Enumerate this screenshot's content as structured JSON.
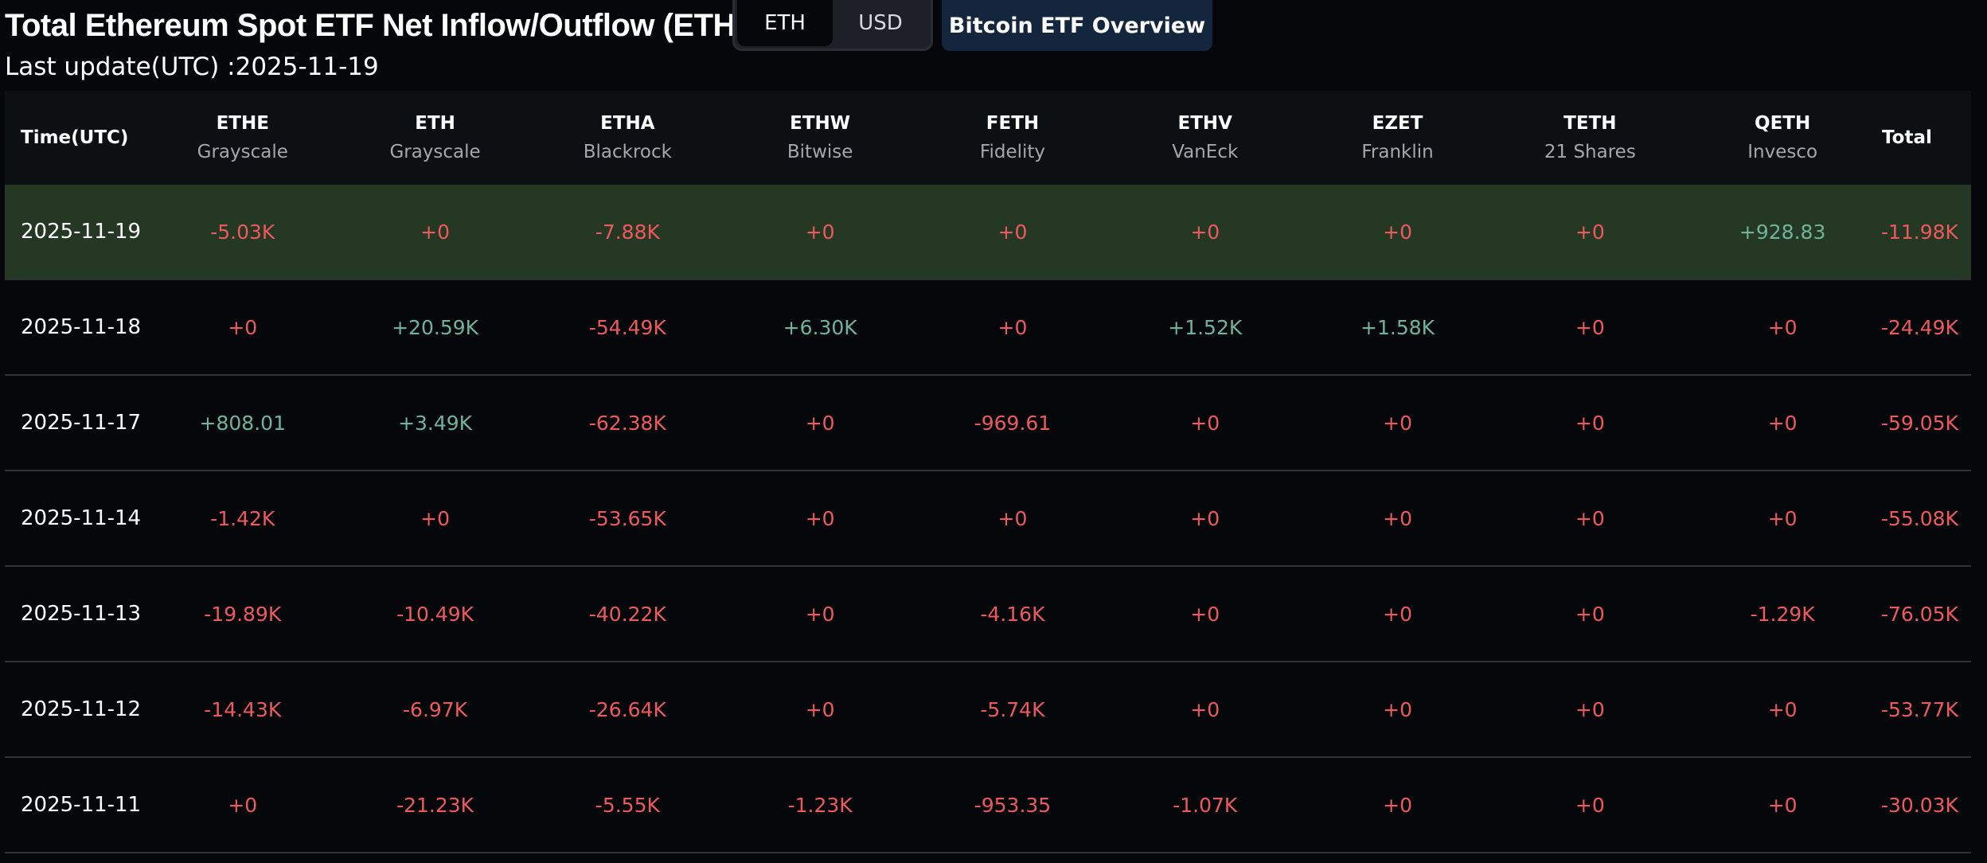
{
  "page": {
    "title": "Total Ethereum Spot ETF Net Inflow/Outflow (ETH)",
    "last_update": "Last update(UTC) :2025-11-19"
  },
  "toolbar": {
    "units": [
      "ETH",
      "USD"
    ],
    "selected_unit": "ETH",
    "overview_label": "Bitcoin ETF Overview"
  },
  "colors": {
    "negative": "#ec5a5e",
    "positive": "#6fb39a",
    "highlight_row": "#253823",
    "overview_button": "#14263d"
  },
  "table": {
    "time_header": "Time(UTC)",
    "total_header": "Total",
    "funds": [
      {
        "ticker": "ETHE",
        "issuer": "Grayscale"
      },
      {
        "ticker": "ETH",
        "issuer": "Grayscale"
      },
      {
        "ticker": "ETHA",
        "issuer": "Blackrock"
      },
      {
        "ticker": "ETHW",
        "issuer": "Bitwise"
      },
      {
        "ticker": "FETH",
        "issuer": "Fidelity"
      },
      {
        "ticker": "ETHV",
        "issuer": "VanEck"
      },
      {
        "ticker": "EZET",
        "issuer": "Franklin"
      },
      {
        "ticker": "TETH",
        "issuer": "21 Shares"
      },
      {
        "ticker": "QETH",
        "issuer": "Invesco"
      }
    ],
    "rows": [
      {
        "date": "2025-11-19",
        "values": [
          "-5.03K",
          "+0",
          "-7.88K",
          "+0",
          "+0",
          "+0",
          "+0",
          "+0",
          "+928.83"
        ],
        "total": "-11.98K"
      },
      {
        "date": "2025-11-18",
        "values": [
          "+0",
          "+20.59K",
          "-54.49K",
          "+6.30K",
          "+0",
          "+1.52K",
          "+1.58K",
          "+0",
          "+0"
        ],
        "total": "-24.49K"
      },
      {
        "date": "2025-11-17",
        "values": [
          "+808.01",
          "+3.49K",
          "-62.38K",
          "+0",
          "-969.61",
          "+0",
          "+0",
          "+0",
          "+0"
        ],
        "total": "-59.05K"
      },
      {
        "date": "2025-11-14",
        "values": [
          "-1.42K",
          "+0",
          "-53.65K",
          "+0",
          "+0",
          "+0",
          "+0",
          "+0",
          "+0"
        ],
        "total": "-55.08K"
      },
      {
        "date": "2025-11-13",
        "values": [
          "-19.89K",
          "-10.49K",
          "-40.22K",
          "+0",
          "-4.16K",
          "+0",
          "+0",
          "+0",
          "-1.29K"
        ],
        "total": "-76.05K"
      },
      {
        "date": "2025-11-12",
        "values": [
          "-14.43K",
          "-6.97K",
          "-26.64K",
          "+0",
          "-5.74K",
          "+0",
          "+0",
          "+0",
          "+0"
        ],
        "total": "-53.77K"
      },
      {
        "date": "2025-11-11",
        "values": [
          "+0",
          "-21.23K",
          "-5.55K",
          "-1.23K",
          "-953.35",
          "-1.07K",
          "+0",
          "+0",
          "+0"
        ],
        "total": "-30.03K"
      }
    ]
  }
}
